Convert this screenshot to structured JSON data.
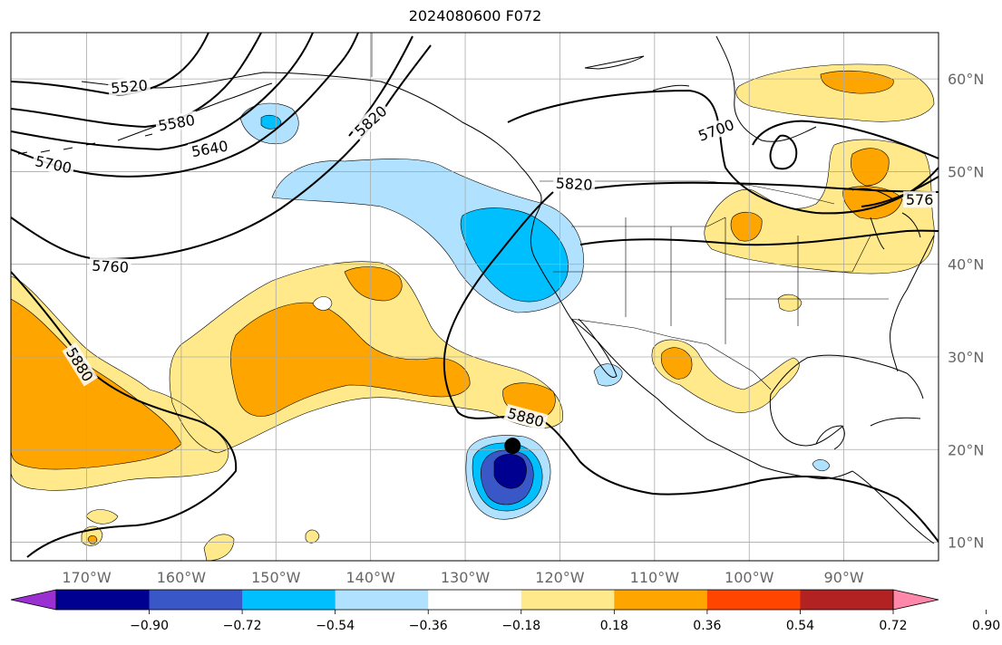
{
  "title": "2024080600 F072",
  "map": {
    "lon_range": [
      -178,
      -80
    ],
    "lat_range": [
      8,
      65
    ],
    "lon_ticks": [
      {
        "value": -170,
        "label": "170°W"
      },
      {
        "value": -160,
        "label": "160°W"
      },
      {
        "value": -150,
        "label": "150°W"
      },
      {
        "value": -140,
        "label": "140°W"
      },
      {
        "value": -130,
        "label": "130°W"
      },
      {
        "value": -120,
        "label": "120°W"
      },
      {
        "value": -110,
        "label": "110°W"
      },
      {
        "value": -100,
        "label": "100°W"
      },
      {
        "value": -90,
        "label": "90°W"
      }
    ],
    "lat_ticks": [
      {
        "value": 10,
        "label": "10°N"
      },
      {
        "value": 20,
        "label": "20°N"
      },
      {
        "value": 30,
        "label": "30°N"
      },
      {
        "value": 40,
        "label": "40°N"
      },
      {
        "value": 50,
        "label": "50°N"
      },
      {
        "value": 60,
        "label": "60°N"
      }
    ],
    "contour_labels": [
      {
        "text": "5520",
        "lon": -165.5,
        "lat": 59.2,
        "rotate": -5
      },
      {
        "text": "5580",
        "lon": -160.5,
        "lat": 55.3,
        "rotate": -10
      },
      {
        "text": "5640",
        "lon": -157,
        "lat": 52.5,
        "rotate": -10
      },
      {
        "text": "5700",
        "lon": -173.5,
        "lat": 50.8,
        "rotate": 12
      },
      {
        "text": "5820",
        "lon": -140,
        "lat": 55.5,
        "rotate": -42
      },
      {
        "text": "5760",
        "lon": -167.5,
        "lat": 39.8,
        "rotate": 3
      },
      {
        "text": "5880",
        "lon": -170.7,
        "lat": 29.2,
        "rotate": 58
      },
      {
        "text": "5880",
        "lon": -123.6,
        "lat": 23.5,
        "rotate": 15
      },
      {
        "text": "5820",
        "lon": -118.5,
        "lat": 48.7,
        "rotate": 3
      },
      {
        "text": "5700",
        "lon": -103.5,
        "lat": 54.5,
        "rotate": -20
      },
      {
        "text": "576",
        "lon": -82,
        "lat": 47.0,
        "rotate": 0
      }
    ],
    "marker": {
      "lon": -125,
      "lat": 20.4
    }
  },
  "colorbar": {
    "colors": [
      "#9b30d2",
      "#000090",
      "#3a57c8",
      "#00bfff",
      "#b0e2ff",
      "#ffffff",
      "#ffe98a",
      "#ffa500",
      "#ff4500",
      "#b22222",
      "#ff88aa"
    ],
    "tick_labels": [
      "−0.90",
      "−0.72",
      "−0.54",
      "−0.36",
      "−0.18",
      "0.18",
      "0.36",
      "0.54",
      "0.72",
      "0.90"
    ]
  }
}
